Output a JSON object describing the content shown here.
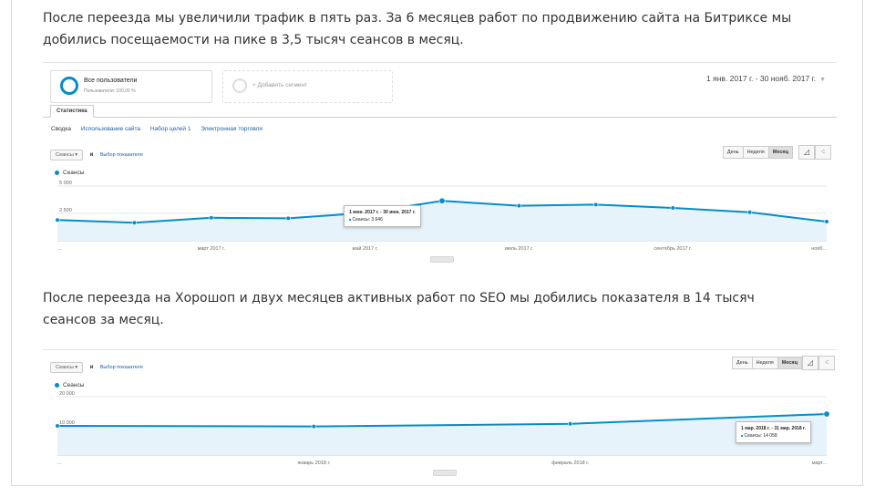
{
  "paragraphs": {
    "p1": "После переезда мы увеличили трафик в пять раз. За 6 месяцев работ по продвижению сайта на Битриксе мы добились посещаемости на пике в 3,5 тысяч сеансов в месяц.",
    "p2": "После переезда на Хорошоп и двух месяцев активных работ по SEO мы добились показателя в 14 тысяч сеансов за месяц."
  },
  "analytics1": {
    "segment_title": "Все пользователи",
    "segment_sub": "Пользователи: 100,00 %",
    "add_segment": "+ Добавить сегмент",
    "date_range": "1 янв. 2017 г. - 30 нояб. 2017 г.",
    "tab": "Статистика",
    "subtabs": [
      "Сводка",
      "Использование сайта",
      "Набор целей 1",
      "Электронная торговля"
    ],
    "metric": "Сеансы",
    "and": "и",
    "choose_metric": "Выбор показателя",
    "periods": [
      "День",
      "Неделя",
      "Месяц"
    ],
    "legend": "Сеансы",
    "tooltip_date": "1 июн. 2017 г. - 30 июн. 2017 г.",
    "tooltip_value": "Сеансы: 3 646"
  },
  "analytics2": {
    "metric": "Сеансы",
    "and": "и",
    "choose_metric": "Выбор показателя",
    "periods": [
      "День",
      "Неделя",
      "Месяц"
    ],
    "legend": "Сеансы",
    "tooltip_date": "1 мар. 2018 г. - 31 мар. 2018 г.",
    "tooltip_value": "Сеансы: 14 058"
  },
  "colors": {
    "series": "#058dc7",
    "area": "#e6f3fa",
    "link": "#1a5fa8"
  },
  "chart_data": [
    {
      "type": "area",
      "series": [
        {
          "name": "Сеансы",
          "values": [
            1900,
            1650,
            2100,
            2050,
            2550,
            3646,
            3200,
            3300,
            3000,
            2600,
            1750
          ]
        }
      ],
      "x": [
        "янв",
        "февр",
        "март 2017 г.",
        "апр",
        "май 2017 г.",
        "июн",
        "июль 2017 г.",
        "авг",
        "сентябрь 2017 г.",
        "окт",
        "нояб..."
      ],
      "xticks": [
        "...",
        "март 2017 г.",
        "май 2017 г.",
        "июль 2017 г.",
        "сентябрь 2017 г.",
        "нояб..."
      ],
      "yticks": [
        "5 000",
        "2 500"
      ],
      "ylim": [
        0,
        5000
      ],
      "highlight_index": 5
    },
    {
      "type": "area",
      "series": [
        {
          "name": "Сеансы",
          "values": [
            10000,
            9800,
            10700,
            14058
          ]
        }
      ],
      "x": [
        "дек",
        "январь 2018 г.",
        "февраль 2018 г.",
        "март..."
      ],
      "xticks": [
        "...",
        "январь 2018 г.",
        "февраль 2018 г.",
        "март..."
      ],
      "yticks": [
        "20 000",
        "10 000"
      ],
      "ylim": [
        0,
        20000
      ],
      "highlight_index": 3
    }
  ]
}
